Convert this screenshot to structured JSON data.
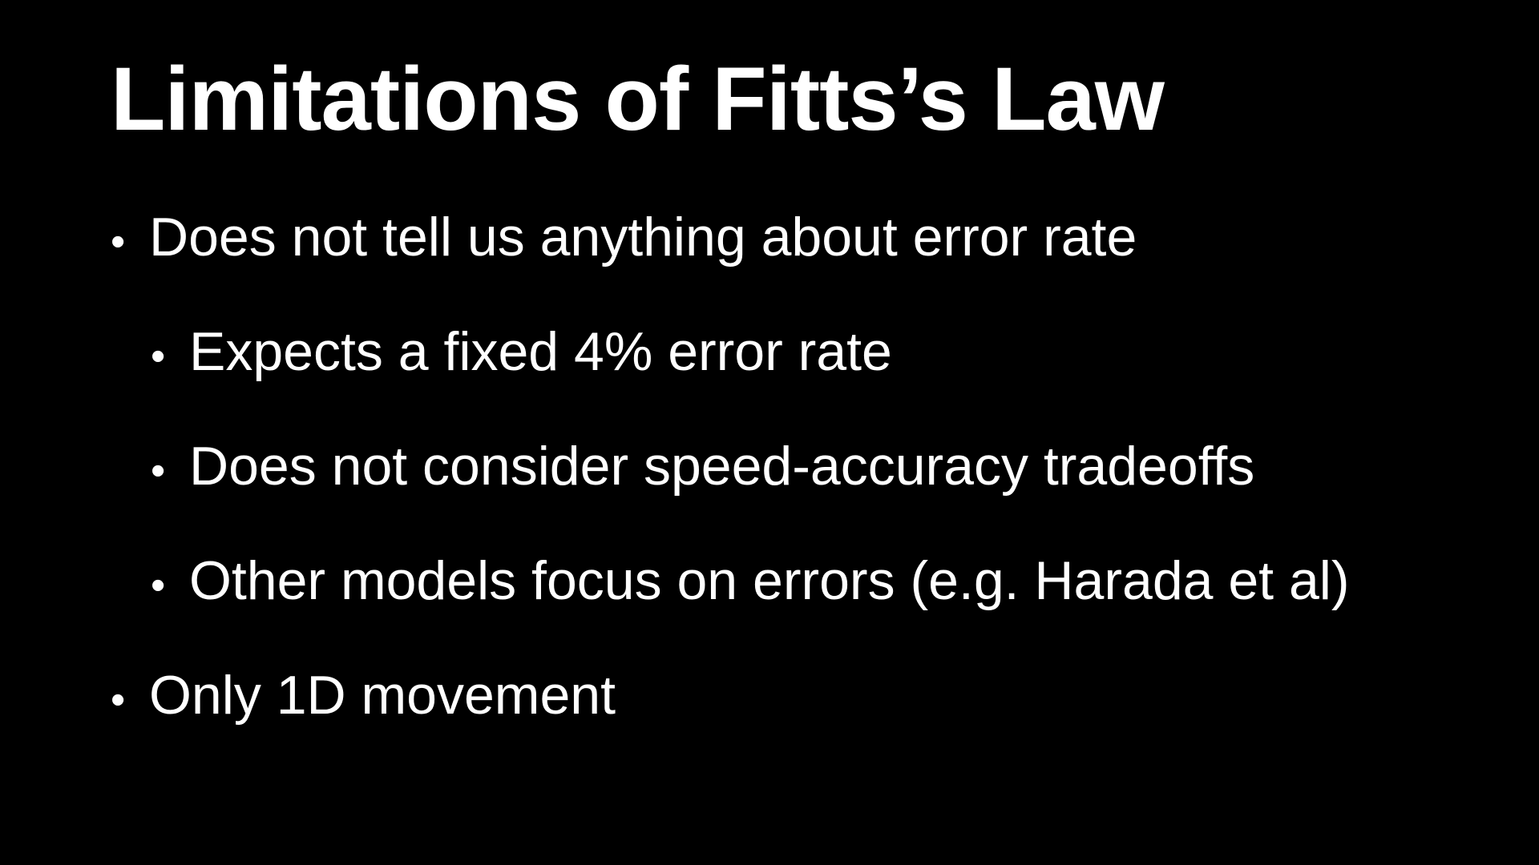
{
  "slide": {
    "title": "Limitations of Fitts’s Law",
    "bullet_glyph": "•",
    "bullets": [
      {
        "text": "Does not tell us anything about error rate",
        "level": 1
      },
      {
        "text": "Expects a fixed 4% error rate",
        "level": 2
      },
      {
        "text": "Does not consider speed-accuracy tradeoffs",
        "level": 2
      },
      {
        "text": "Other models focus on errors (e.g. Harada et al)",
        "level": 2
      },
      {
        "text": "Only 1D movement",
        "level": 1
      }
    ]
  },
  "colors": {
    "background": "#000000",
    "text": "#ffffff"
  }
}
